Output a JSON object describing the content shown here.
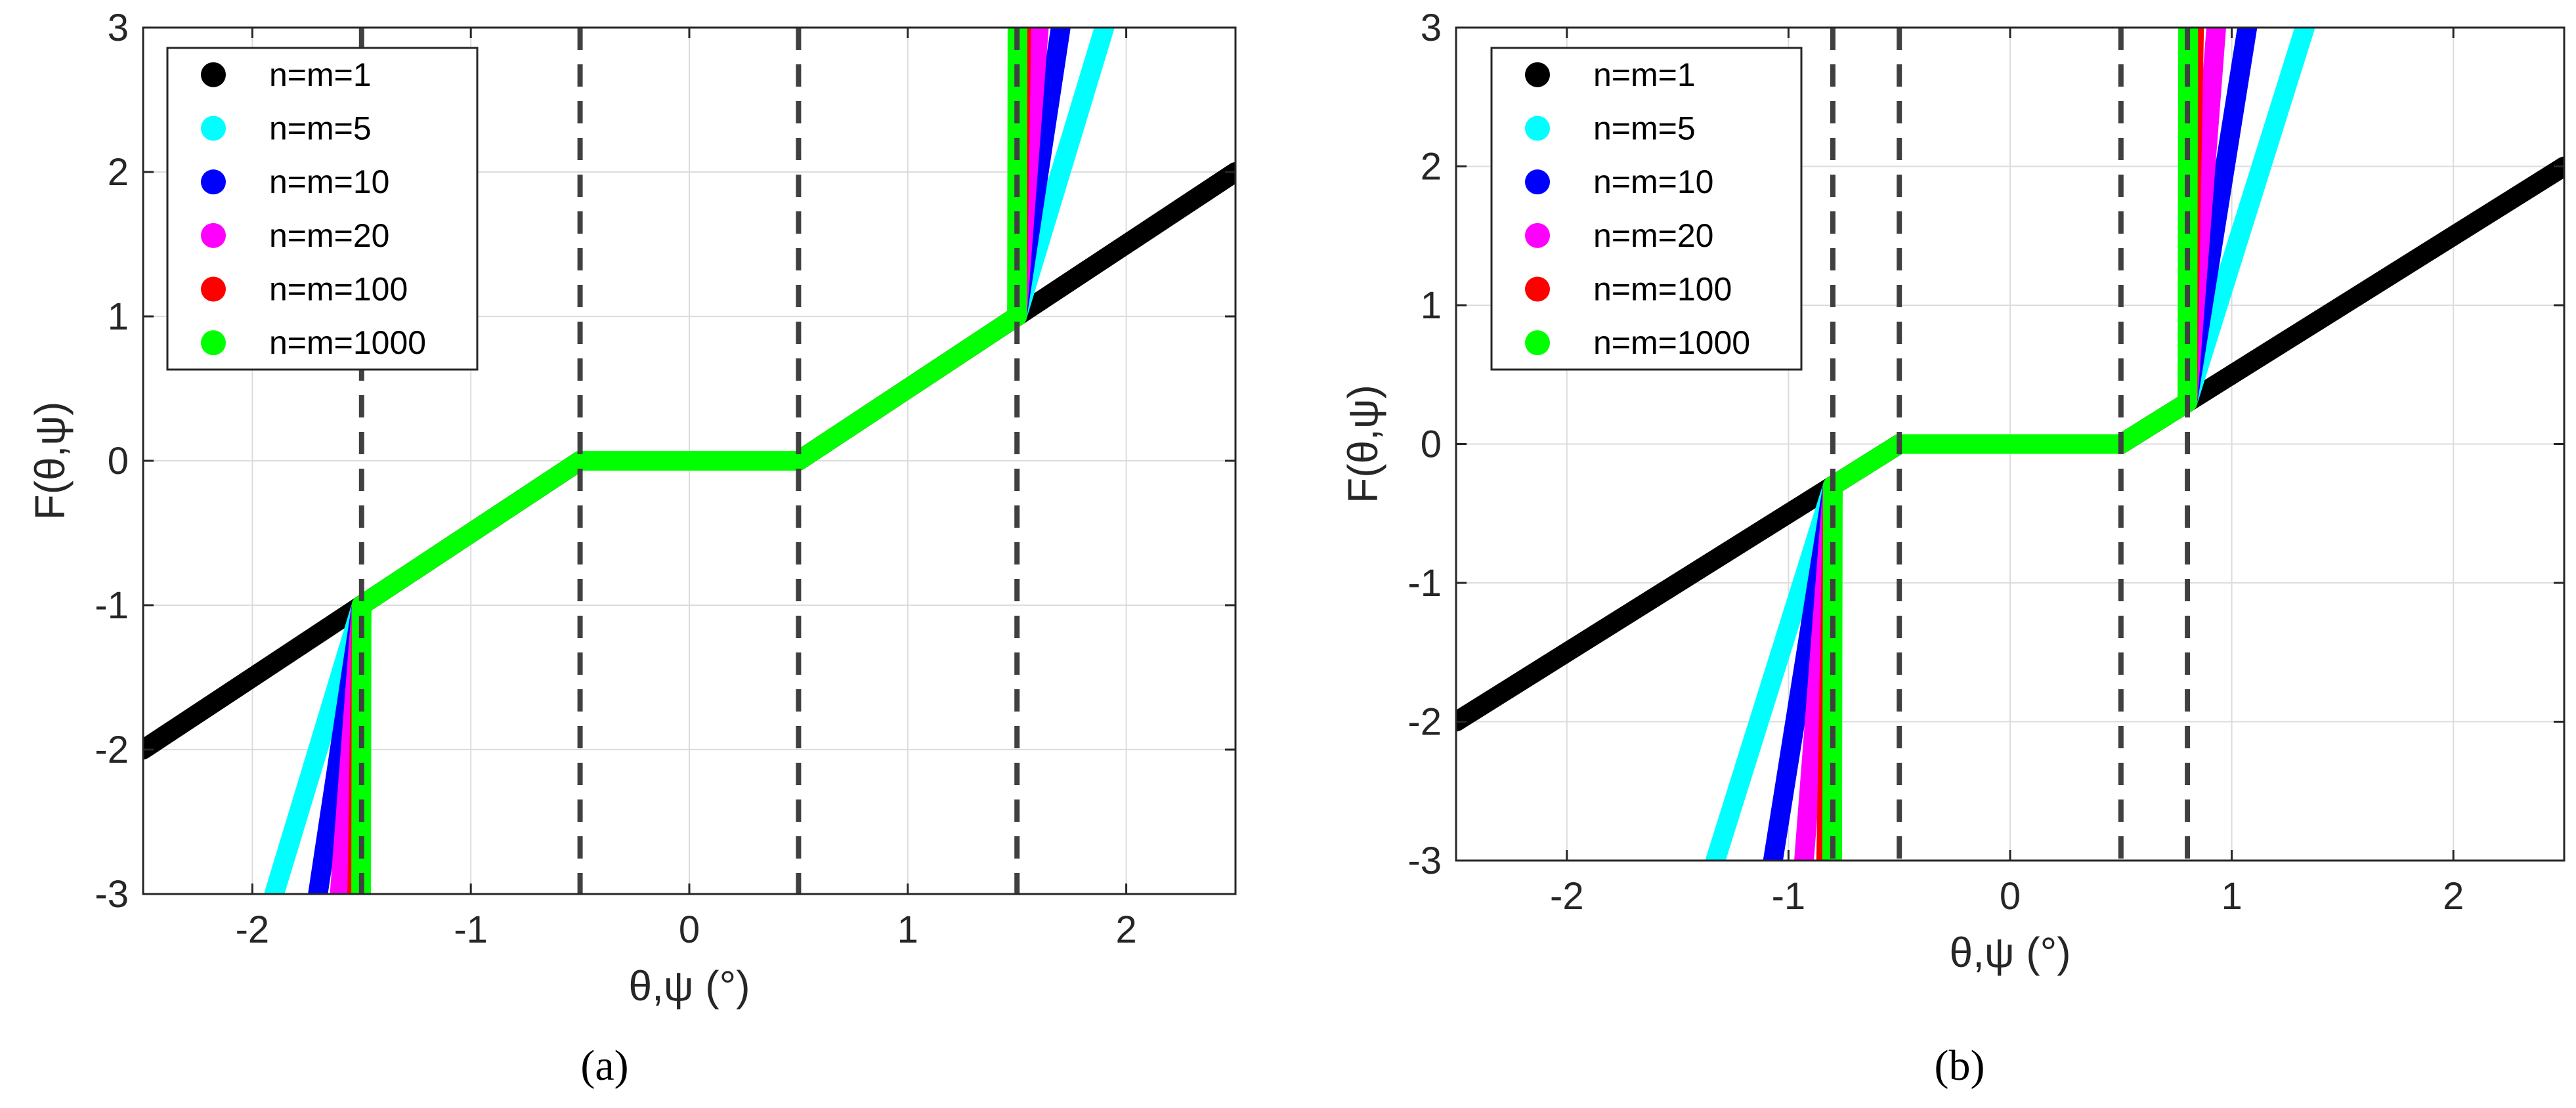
{
  "chart_data": [
    {
      "type": "line",
      "panel_label": "(a)",
      "xlabel": "θ,ψ (°)",
      "ylabel": "F(θ,ψ)",
      "xlim": [
        -2.5,
        2.5
      ],
      "ylim": [
        -3,
        3
      ],
      "xticks": [
        -2,
        -1,
        0,
        1,
        2
      ],
      "yticks": [
        -3,
        -2,
        -1,
        0,
        1,
        2,
        3
      ],
      "grid": true,
      "legend_position": "top-left",
      "vertical_dashed_lines": [
        -1.5,
        -0.5,
        0.5,
        1.5
      ],
      "series": [
        {
          "name": "n=m=1",
          "color": "#000000",
          "x": [
            -2.5,
            -1.5,
            -0.5,
            0.5,
            1.5,
            2.5
          ],
          "y": [
            -2,
            -1,
            0,
            0,
            1,
            2
          ]
        },
        {
          "name": "n=m=5",
          "color": "#00FFFF",
          "x": [
            -1.9,
            -1.5,
            -0.5,
            0.5,
            1.5,
            1.9
          ],
          "y": [
            -3,
            -1,
            0,
            0,
            1,
            3
          ]
        },
        {
          "name": "n=m=10",
          "color": "#0000FF",
          "x": [
            -1.7,
            -1.5,
            -0.5,
            0.5,
            1.5,
            1.7
          ],
          "y": [
            -3,
            -1,
            0,
            0,
            1,
            3
          ]
        },
        {
          "name": "n=m=20",
          "color": "#FF00FF",
          "x": [
            -1.6,
            -1.5,
            -0.5,
            0.5,
            1.5,
            1.6
          ],
          "y": [
            -3,
            -1,
            0,
            0,
            1,
            3
          ]
        },
        {
          "name": "n=m=100",
          "color": "#FF0000",
          "x": [
            -1.52,
            -1.5,
            -0.5,
            0.5,
            1.5,
            1.52
          ],
          "y": [
            -3,
            -1,
            0,
            0,
            1,
            3
          ]
        },
        {
          "name": "n=m=1000",
          "color": "#00FF00",
          "x": [
            -1.502,
            -1.5,
            -0.5,
            0.5,
            1.5,
            1.502
          ],
          "y": [
            -3,
            -1,
            0,
            0,
            1,
            3
          ]
        }
      ]
    },
    {
      "type": "line",
      "panel_label": "(b)",
      "xlabel": "θ,ψ (°)",
      "ylabel": "F(θ,ψ)",
      "xlim": [
        -2.5,
        2.5
      ],
      "ylim": [
        -3,
        3
      ],
      "xticks": [
        -2,
        -1,
        0,
        1,
        2
      ],
      "yticks": [
        -3,
        -2,
        -1,
        0,
        1,
        2,
        3
      ],
      "grid": true,
      "legend_position": "top-left",
      "vertical_dashed_lines": [
        -0.8,
        -0.5,
        0.5,
        0.8
      ],
      "series": [
        {
          "name": "n=m=1",
          "color": "#000000",
          "x": [
            -2.5,
            -0.8,
            -0.5,
            0.5,
            0.8,
            2.5
          ],
          "y": [
            -2,
            -0.3,
            0,
            0,
            0.3,
            2
          ]
        },
        {
          "name": "n=m=5",
          "color": "#00FFFF",
          "x": [
            -1.33,
            -0.8,
            -0.5,
            0.5,
            0.8,
            1.33
          ],
          "y": [
            -3,
            -0.3,
            0,
            0,
            0.3,
            3
          ]
        },
        {
          "name": "n=m=10",
          "color": "#0000FF",
          "x": [
            -1.07,
            -0.8,
            -0.5,
            0.5,
            0.8,
            1.07
          ],
          "y": [
            -3,
            -0.3,
            0,
            0,
            0.3,
            3
          ]
        },
        {
          "name": "n=m=20",
          "color": "#FF00FF",
          "x": [
            -0.93,
            -0.8,
            -0.5,
            0.5,
            0.8,
            0.93
          ],
          "y": [
            -3,
            -0.3,
            0,
            0,
            0.3,
            3
          ]
        },
        {
          "name": "n=m=100",
          "color": "#FF0000",
          "x": [
            -0.83,
            -0.8,
            -0.5,
            0.5,
            0.8,
            0.83
          ],
          "y": [
            -3,
            -0.3,
            0,
            0,
            0.3,
            3
          ]
        },
        {
          "name": "n=m=1000",
          "color": "#00FF00",
          "x": [
            -0.803,
            -0.8,
            -0.5,
            0.5,
            0.8,
            0.803
          ],
          "y": [
            -3,
            -0.3,
            0,
            0,
            0.3,
            3
          ]
        }
      ]
    }
  ]
}
